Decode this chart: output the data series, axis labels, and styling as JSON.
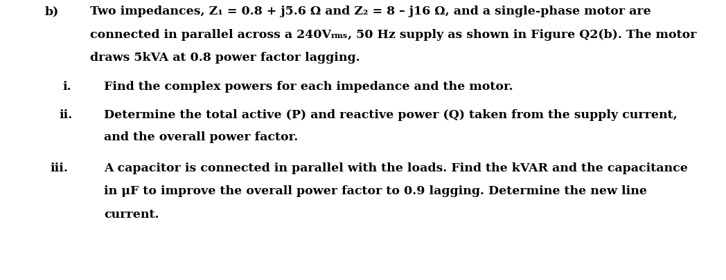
{
  "background_color": "#ffffff",
  "fig_width": 10.48,
  "fig_height": 4.05,
  "dpi": 100,
  "label_b": "b)",
  "line1_part1": "Two impedances, Z",
  "line1_sub1": "1",
  "line1_part2": " = 0.8 + j5.6 Ω and Z",
  "line1_sub2": "2",
  "line1_part3": " = 8 – j16 Ω, and a single-phase motor are",
  "line2_part1": "connected in parallel across a 240V",
  "line2_rms": "rms",
  "line2_part2": ", 50 Hz supply as shown in Figure Q2(b). The motor",
  "line3": "draws 5kVA at 0.8 power factor lagging.",
  "item_i_label": "i.",
  "item_i_text": "Find the complex powers for each impedance and the motor.",
  "item_ii_label": "ii.",
  "item_ii_text1": "Determine the total active (P) and reactive power (Q) taken from the supply current,",
  "item_ii_text2": "and the overall power factor.",
  "item_iii_label": "iii.",
  "item_iii_text1": "A capacitor is connected in parallel with the loads. Find the kVAR and the capacitance",
  "item_iii_text2": "in μF to improve the overall power factor to 0.9 lagging. Determine the new line",
  "item_iii_text3": "current.",
  "font_size": 12.5,
  "font_family": "DejaVu Serif",
  "text_color": "#000000"
}
